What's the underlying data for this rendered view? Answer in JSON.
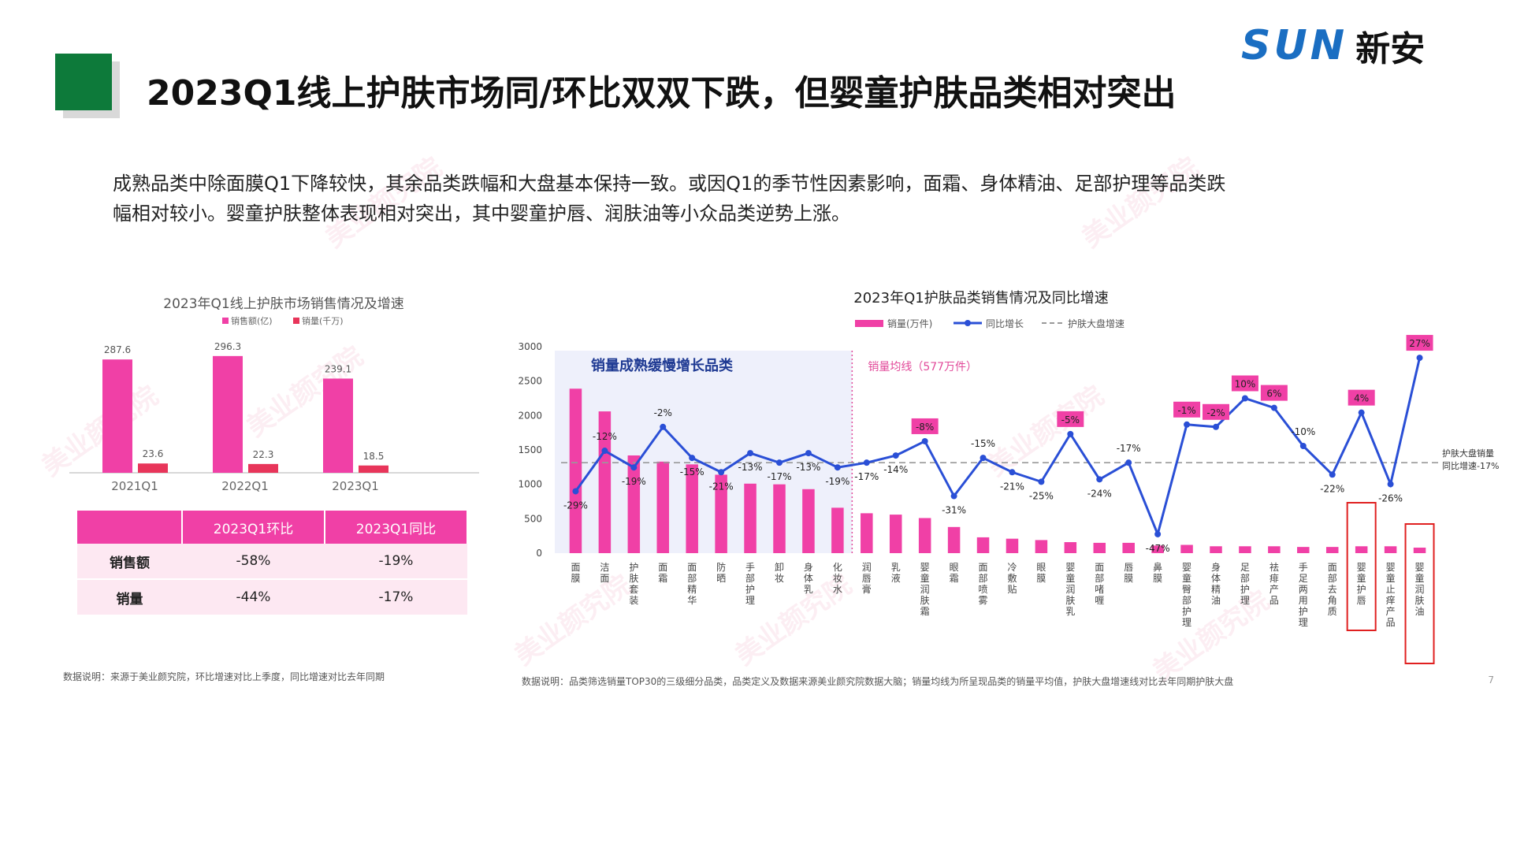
{
  "header": {
    "title": "2023Q1线上护肤市场同/环比双双下跌，但婴童护肤品类相对突出",
    "logo_text": "SUN",
    "logo_cn": "新安",
    "brand_color": "#0d7a3a"
  },
  "description": "成熟品类中除面膜Q1下降较快，其余品类跌幅和大盘基本保持一致。或因Q1的季节性因素影响，面霜、身体精油、足部护理等品类跌幅相对较小。婴童护肤整体表现相对突出，其中婴童护唇、润肤油等小众品类逆势上涨。",
  "watermark_text": "美业颜究院",
  "left_chart": {
    "title": "2023年Q1线上护肤市场销售情况及增速",
    "legend": [
      "销售额(亿)",
      "销量(千万)"
    ],
    "note": "数据说明：来源于美业颜究院，环比增速对比上季度，同比增速对比去年同期",
    "table": {
      "headers": [
        "",
        "2023Q1环比",
        "2023Q1同比"
      ],
      "rows": [
        [
          "销售额",
          "-58%",
          "-19%"
        ],
        [
          "销量",
          "-44%",
          "-17%"
        ]
      ]
    }
  },
  "right_chart": {
    "title": "2023年Q1护肤品类销售情况及同比增速",
    "legend": [
      "销量(万件)",
      "同比增长",
      "护肤大盘增速"
    ],
    "region_label": "销量成熟缓慢增长品类",
    "avg_label": "销量均线（577万件）",
    "ref_label_1": "护肤大盘销量",
    "ref_label_2": "同比增速-17%",
    "note": "数据说明：品类筛选销量TOP30的三级细分品类，品类定义及数据来源美业颜究院数据大脑；销量均线为所呈现品类的销量平均值，护肤大盘增速线对比去年同期护肤大盘"
  },
  "page_number": "7",
  "chart_data": [
    {
      "type": "bar",
      "title": "2023年Q1线上护肤市场销售情况及增速",
      "categories": [
        "2021Q1",
        "2022Q1",
        "2023Q1"
      ],
      "series": [
        {
          "name": "销售额(亿)",
          "values": [
            287.6,
            296.3,
            239.1
          ],
          "color": "#f040a6"
        },
        {
          "name": "销量(千万)",
          "values": [
            23.6,
            22.3,
            18.5
          ],
          "color": "#e8355a"
        }
      ],
      "ylim": [
        0,
        330
      ],
      "legend_position": "top"
    },
    {
      "type": "bar+line",
      "title": "2023年Q1护肤品类销售情况及同比增速",
      "categories": [
        "面膜",
        "洁面",
        "护肤套装",
        "面霜",
        "面部精华",
        "防晒",
        "手部护理",
        "卸妆",
        "身体乳",
        "化妆水",
        "润唇膏",
        "乳液",
        "婴童润肤霜",
        "眼霜",
        "面部喷雾",
        "冷敷贴",
        "眼膜",
        "婴童润肤乳",
        "面部啫喱",
        "唇膜",
        "鼻膜",
        "婴童臀部护理",
        "身体精油",
        "足部护理",
        "祛痱产品",
        "手足两用护理",
        "面部去角质",
        "婴童护唇",
        "婴童止痒产品",
        "婴童润肤油"
      ],
      "bar_series": {
        "name": "销量(万件)",
        "values": [
          2390,
          2060,
          1420,
          1330,
          1290,
          1140,
          1010,
          1000,
          930,
          660,
          580,
          560,
          510,
          380,
          230,
          210,
          190,
          160,
          150,
          150,
          110,
          120,
          100,
          100,
          100,
          90,
          90,
          100,
          100,
          80
        ],
        "color": "#f040a6"
      },
      "line_series": {
        "name": "同比增长",
        "values": [
          -29,
          -12,
          -19,
          -2,
          -15,
          -21,
          -13,
          -17,
          -13,
          -19,
          -17,
          -14,
          -8,
          -31,
          -15,
          -21,
          -25,
          -5,
          -24,
          -17,
          -47,
          -1,
          -2,
          10,
          6,
          -10,
          -22,
          4,
          -26,
          27
        ],
        "color": "#2a4fd6"
      },
      "reference_line": {
        "name": "护肤大盘增速",
        "value": -17
      },
      "highlight_boxes": [
        "婴童护唇",
        "婴童润肤油"
      ],
      "highlight_labels": [
        -8,
        -5,
        -1,
        -2,
        10,
        6,
        4,
        27
      ],
      "y_ticks": [
        0,
        500,
        1000,
        1500,
        2000,
        2500,
        3000
      ],
      "ylim": [
        0,
        3000
      ],
      "legend_position": "top"
    }
  ]
}
